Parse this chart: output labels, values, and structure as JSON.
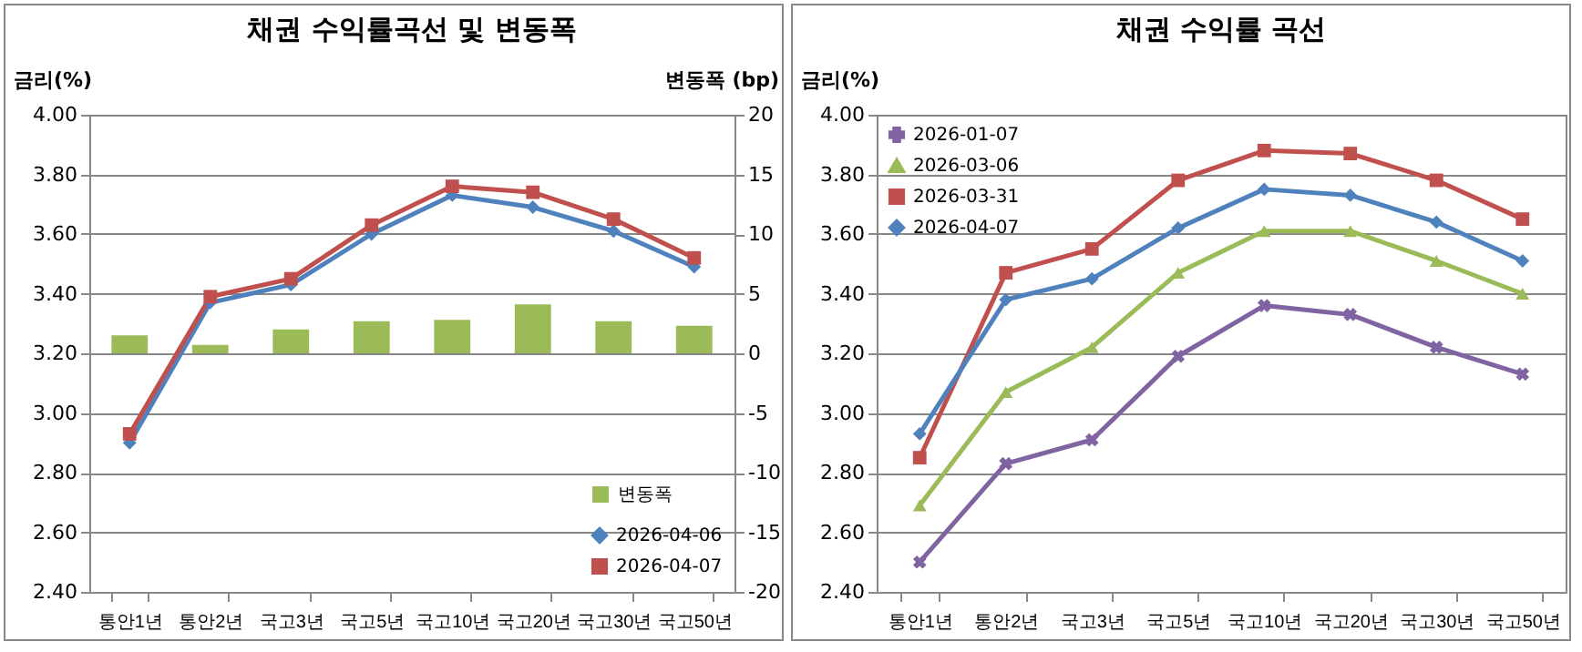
{
  "chart_data": [
    {
      "type": "line",
      "title": "채권 수익률곡선 및 변동폭",
      "ylabel": "금리(%)",
      "y2label": "변동폭 (bp)",
      "categories": [
        "통안1년",
        "통안2년",
        "국고3년",
        "국고5년",
        "국고10년",
        "국고20년",
        "국고30년",
        "국고50년"
      ],
      "series": [
        {
          "name": "변동폭",
          "type": "bar",
          "axis": "y2",
          "color": "#9bbb59",
          "values": [
            1.5,
            0.7,
            2,
            2.7,
            2.8,
            4.1,
            2.7,
            2.3
          ]
        },
        {
          "name": "2026-04-06",
          "color": "#4f81bd",
          "marker": "diamond",
          "values": [
            2.9,
            3.37,
            3.43,
            3.6,
            3.73,
            3.69,
            3.61,
            3.49
          ]
        },
        {
          "name": "2026-04-07",
          "color": "#c0504d",
          "marker": "square",
          "values": [
            2.93,
            3.39,
            3.45,
            3.63,
            3.76,
            3.74,
            3.65,
            3.52
          ]
        }
      ],
      "ylim": [
        2.4,
        4.0
      ],
      "yticks": [
        {
          "value": 2.4,
          "label": "2.40"
        },
        {
          "value": 2.6,
          "label": "2.60"
        },
        {
          "value": 2.8,
          "label": "2.80"
        },
        {
          "value": 3.0,
          "label": "3.00"
        },
        {
          "value": 3.2,
          "label": "3.20"
        },
        {
          "value": 3.4,
          "label": "3.40"
        },
        {
          "value": 3.6,
          "label": "3.60"
        },
        {
          "value": 3.8,
          "label": "3.80"
        },
        {
          "value": 4.0,
          "label": "4.00"
        }
      ],
      "y2lim": [
        -20,
        20
      ],
      "y2ticks": [
        -20,
        -15,
        -10,
        -5,
        0,
        5,
        10,
        15,
        20
      ],
      "grid": "y",
      "legend": "bottom right",
      "line_style": "solid"
    },
    {
      "type": "line",
      "title": "채권 수익률 곡선",
      "ylabel": "금리(%)",
      "categories": [
        "통안1년",
        "통안2년",
        "국고3년",
        "국고5년",
        "국고10년",
        "국고20년",
        "국고30년",
        "국고50년"
      ],
      "series": [
        {
          "name": "2026-01-07",
          "color": "#8064a2",
          "marker": "cross",
          "values": [
            2.5,
            2.83,
            2.91,
            3.19,
            3.36,
            3.33,
            3.22,
            3.13
          ]
        },
        {
          "name": "2026-03-06",
          "color": "#9bbb59",
          "marker": "triangle",
          "values": [
            2.69,
            3.07,
            3.22,
            3.47,
            3.61,
            3.61,
            3.51,
            3.4
          ]
        },
        {
          "name": "2026-03-31",
          "color": "#c0504d",
          "marker": "square",
          "values": [
            2.85,
            3.47,
            3.55,
            3.78,
            3.88,
            3.87,
            3.78,
            3.65
          ]
        },
        {
          "name": "2026-04-07",
          "color": "#4f81bd",
          "marker": "diamond",
          "values": [
            2.93,
            3.38,
            3.45,
            3.62,
            3.75,
            3.73,
            3.64,
            3.51
          ]
        }
      ],
      "ylim": [
        2.4,
        4.0
      ],
      "yticks": [
        {
          "value": 2.4,
          "label": "2.40"
        },
        {
          "value": 2.6,
          "label": "2.60"
        },
        {
          "value": 2.8,
          "label": "2.80"
        },
        {
          "value": 3.0,
          "label": "3.00"
        },
        {
          "value": 3.2,
          "label": "3.20"
        },
        {
          "value": 3.4,
          "label": "3.40"
        },
        {
          "value": 3.6,
          "label": "3.60"
        },
        {
          "value": 3.8,
          "label": "3.80"
        },
        {
          "value": 4.0,
          "label": "4.00"
        }
      ],
      "grid": "y",
      "legend": "top left",
      "line_style": "solid"
    }
  ]
}
